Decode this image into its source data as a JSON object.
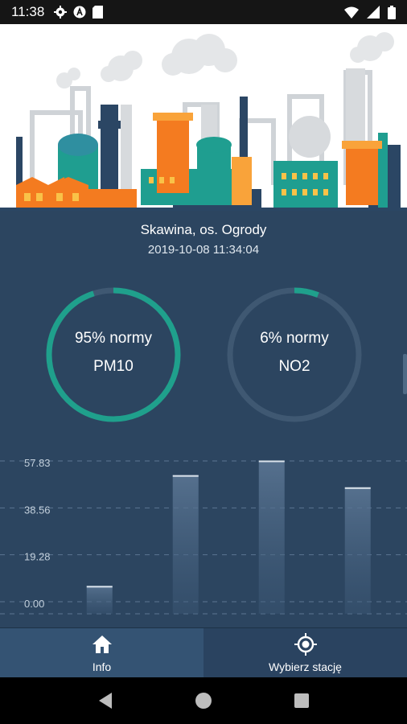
{
  "status_bar": {
    "time": "11:38",
    "icons_left": [
      "gear-icon",
      "a-badge-icon",
      "sd-card-icon"
    ],
    "icons_right": [
      "wifi-icon",
      "signal-icon",
      "battery-icon"
    ]
  },
  "station": {
    "name": "Skawina, os. Ogrody",
    "datetime": "2019-10-08 11:34:04"
  },
  "gauges": [
    {
      "id": "pm10",
      "percent_text": "95% normy",
      "pollutant": "PM10",
      "value": 0.95,
      "color": "#1fa08c",
      "track": "#3f5872"
    },
    {
      "id": "no2",
      "percent_text": "6% normy",
      "pollutant": "NO2",
      "value": 0.06,
      "color": "#1fa08c",
      "track": "#3f5872"
    }
  ],
  "chart_data": {
    "type": "bar",
    "y_ticks": [
      "0.00",
      "19.28",
      "38.56",
      "57.83"
    ],
    "ylim": [
      0,
      57.83
    ],
    "values": [
      6.5,
      52.0,
      58.0,
      47.0
    ],
    "grid": true
  },
  "bottom_nav": {
    "items": [
      {
        "label": "Info",
        "icon": "home-icon",
        "active": true
      },
      {
        "label": "Wybierz stację",
        "icon": "location-target-icon",
        "active": false
      }
    ]
  },
  "system_nav": [
    "back-icon",
    "home-circle-icon",
    "recents-icon"
  ]
}
